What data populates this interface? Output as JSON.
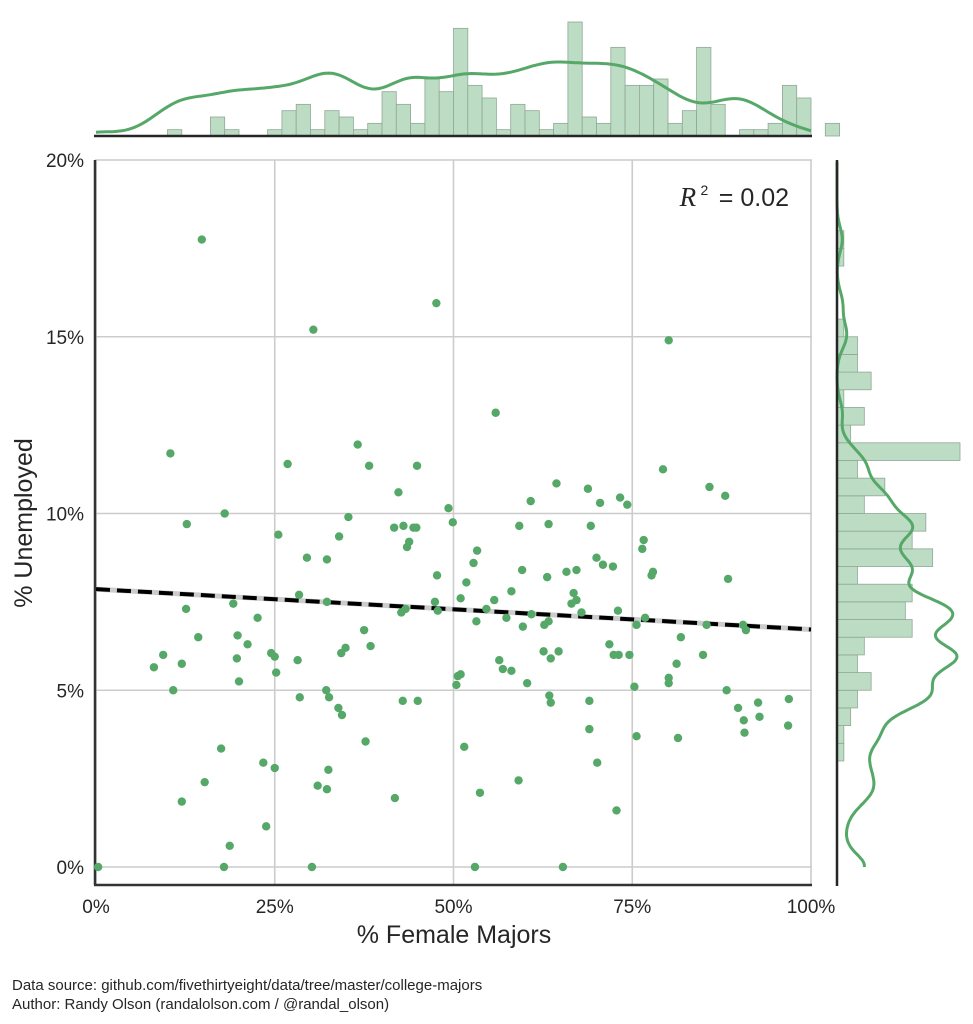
{
  "chart_data": {
    "type": "scatter",
    "title": "",
    "xlabel": "% Female Majors",
    "ylabel": "% Unemployed",
    "xlim": [
      0,
      100
    ],
    "ylim": [
      0,
      20
    ],
    "xticks": [
      "0%",
      "25%",
      "50%",
      "75%",
      "100%"
    ],
    "yticks": [
      "0%",
      "5%",
      "10%",
      "15%",
      "20%"
    ],
    "grid": true,
    "annotation": {
      "r_squared_label": "R",
      "r_squared_sup": "2",
      "r_squared_value": "= 0.02"
    },
    "point_color": "#55a868",
    "regression": {
      "style": "dashed",
      "color": "#000000",
      "x": [
        0,
        100
      ],
      "y": [
        7.86,
        6.72
      ]
    },
    "points": [
      [
        0.3,
        0.0
      ],
      [
        14.8,
        17.75
      ],
      [
        30.4,
        15.2
      ],
      [
        47.6,
        15.95
      ],
      [
        80.1,
        14.9
      ],
      [
        55.9,
        12.85
      ],
      [
        10.4,
        11.7
      ],
      [
        36.6,
        11.95
      ],
      [
        26.8,
        11.4
      ],
      [
        38.2,
        11.35
      ],
      [
        44.9,
        11.35
      ],
      [
        79.3,
        11.25
      ],
      [
        42.3,
        10.6
      ],
      [
        64.4,
        10.85
      ],
      [
        68.8,
        10.7
      ],
      [
        73.3,
        10.45
      ],
      [
        74.3,
        10.25
      ],
      [
        85.8,
        10.75
      ],
      [
        88.0,
        10.5
      ],
      [
        49.3,
        10.15
      ],
      [
        60.8,
        10.35
      ],
      [
        70.5,
        10.3
      ],
      [
        12.7,
        9.7
      ],
      [
        18.0,
        10.0
      ],
      [
        35.3,
        9.9
      ],
      [
        41.7,
        9.6
      ],
      [
        43.0,
        9.65
      ],
      [
        44.4,
        9.6
      ],
      [
        44.8,
        9.6
      ],
      [
        49.9,
        9.75
      ],
      [
        59.2,
        9.65
      ],
      [
        63.3,
        9.7
      ],
      [
        69.2,
        9.65
      ],
      [
        25.5,
        9.4
      ],
      [
        34.0,
        9.35
      ],
      [
        43.8,
        9.2
      ],
      [
        43.5,
        9.05
      ],
      [
        76.6,
        9.25
      ],
      [
        76.4,
        9.0
      ],
      [
        29.5,
        8.75
      ],
      [
        32.3,
        8.7
      ],
      [
        53.3,
        8.95
      ],
      [
        52.8,
        8.6
      ],
      [
        70.0,
        8.75
      ],
      [
        70.9,
        8.55
      ],
      [
        72.3,
        8.5
      ],
      [
        47.7,
        8.25
      ],
      [
        51.8,
        8.05
      ],
      [
        59.6,
        8.4
      ],
      [
        63.1,
        8.2
      ],
      [
        65.8,
        8.35
      ],
      [
        67.2,
        8.4
      ],
      [
        77.7,
        8.25
      ],
      [
        77.9,
        8.35
      ],
      [
        88.4,
        8.15
      ],
      [
        28.4,
        7.7
      ],
      [
        19.2,
        7.45
      ],
      [
        32.3,
        7.5
      ],
      [
        22.6,
        7.05
      ],
      [
        12.6,
        7.3
      ],
      [
        42.7,
        7.2
      ],
      [
        43.3,
        7.3
      ],
      [
        47.8,
        7.25
      ],
      [
        47.4,
        7.5
      ],
      [
        51.0,
        7.6
      ],
      [
        54.6,
        7.3
      ],
      [
        55.7,
        7.55
      ],
      [
        58.1,
        7.8
      ],
      [
        66.8,
        7.75
      ],
      [
        67.2,
        7.55
      ],
      [
        67.9,
        7.2
      ],
      [
        73.0,
        7.25
      ],
      [
        76.8,
        7.05
      ],
      [
        57.4,
        7.05
      ],
      [
        59.7,
        6.8
      ],
      [
        60.9,
        7.15
      ],
      [
        62.7,
        6.85
      ],
      [
        63.3,
        6.95
      ],
      [
        66.5,
        7.45
      ],
      [
        75.6,
        6.85
      ],
      [
        85.4,
        6.85
      ],
      [
        90.5,
        6.85
      ],
      [
        90.9,
        6.7
      ],
      [
        14.3,
        6.5
      ],
      [
        19.8,
        6.55
      ],
      [
        21.2,
        6.3
      ],
      [
        24.5,
        6.05
      ],
      [
        25.0,
        5.95
      ],
      [
        37.5,
        6.7
      ],
      [
        34.3,
        6.05
      ],
      [
        34.9,
        6.2
      ],
      [
        38.4,
        6.25
      ],
      [
        8.1,
        5.65
      ],
      [
        9.4,
        6.0
      ],
      [
        12.0,
        5.75
      ],
      [
        19.7,
        5.9
      ],
      [
        28.2,
        5.85
      ],
      [
        25.2,
        5.5
      ],
      [
        53.2,
        6.95
      ],
      [
        56.4,
        5.85
      ],
      [
        56.9,
        5.6
      ],
      [
        58.1,
        5.55
      ],
      [
        62.6,
        6.1
      ],
      [
        63.6,
        5.9
      ],
      [
        64.7,
        6.1
      ],
      [
        71.8,
        6.3
      ],
      [
        72.4,
        6.0
      ],
      [
        73.1,
        6.0
      ],
      [
        74.6,
        6.0
      ],
      [
        81.2,
        5.75
      ],
      [
        81.8,
        6.5
      ],
      [
        84.9,
        6.0
      ],
      [
        80.1,
        5.35
      ],
      [
        10.8,
        5.0
      ],
      [
        20.0,
        5.25
      ],
      [
        28.5,
        4.8
      ],
      [
        32.2,
        5.0
      ],
      [
        32.6,
        4.8
      ],
      [
        33.9,
        4.5
      ],
      [
        34.4,
        4.3
      ],
      [
        42.9,
        4.7
      ],
      [
        45.0,
        4.7
      ],
      [
        50.4,
        5.15
      ],
      [
        50.6,
        5.4
      ],
      [
        51.0,
        5.45
      ],
      [
        60.3,
        5.2
      ],
      [
        63.4,
        4.85
      ],
      [
        63.6,
        4.65
      ],
      [
        69.0,
        4.7
      ],
      [
        75.3,
        5.1
      ],
      [
        80.1,
        5.2
      ],
      [
        88.2,
        5.0
      ],
      [
        89.8,
        4.5
      ],
      [
        90.6,
        4.15
      ],
      [
        92.6,
        4.65
      ],
      [
        92.8,
        4.25
      ],
      [
        96.9,
        4.75
      ],
      [
        96.8,
        4.0
      ],
      [
        90.7,
        3.8
      ],
      [
        81.4,
        3.65
      ],
      [
        75.6,
        3.7
      ],
      [
        69.0,
        3.9
      ],
      [
        37.7,
        3.55
      ],
      [
        17.5,
        3.35
      ],
      [
        51.5,
        3.4
      ],
      [
        23.4,
        2.95
      ],
      [
        25.0,
        2.8
      ],
      [
        70.1,
        2.95
      ],
      [
        15.2,
        2.4
      ],
      [
        31.0,
        2.3
      ],
      [
        32.3,
        2.2
      ],
      [
        32.5,
        2.75
      ],
      [
        59.1,
        2.45
      ],
      [
        53.7,
        2.1
      ],
      [
        41.8,
        1.95
      ],
      [
        12.0,
        1.85
      ],
      [
        23.8,
        1.15
      ],
      [
        72.8,
        1.6
      ],
      [
        18.7,
        0.6
      ],
      [
        17.9,
        0.0
      ],
      [
        30.2,
        0.0
      ],
      [
        53.0,
        0.0
      ],
      [
        65.3,
        0.0
      ]
    ],
    "top_marginal": {
      "type": "histogram+kde",
      "axis": "x",
      "bin_edges_start": 0,
      "bin_width": 2.0,
      "counts": [
        0,
        0,
        0,
        0,
        0,
        1,
        0,
        0,
        3,
        1,
        0,
        0,
        1,
        4,
        5,
        1,
        4,
        3,
        1,
        2,
        7,
        5,
        2,
        9,
        7,
        17,
        8,
        6,
        1,
        5,
        4,
        1,
        2,
        18,
        3,
        2,
        14,
        8,
        8,
        9,
        2,
        4,
        14,
        5,
        0,
        1,
        1,
        2,
        8,
        6,
        0,
        2,
        0
      ]
    },
    "right_marginal": {
      "type": "histogram+kde",
      "axis": "y",
      "bin_edges_start": 3.0,
      "bin_width": 0.5,
      "counts_from_low": [
        1,
        1,
        2,
        3,
        5,
        3,
        4,
        11,
        10,
        11,
        3,
        14,
        11,
        13,
        4,
        7,
        3,
        18,
        2,
        4,
        1,
        5,
        3,
        3,
        1,
        0,
        0,
        0,
        1,
        1
      ]
    }
  },
  "footer": {
    "source_line": "Data source: github.com/fivethirtyeight/data/tree/master/college-majors",
    "author_line": "Author: Randy Olson (randalolson.com / @randal_olson)"
  }
}
